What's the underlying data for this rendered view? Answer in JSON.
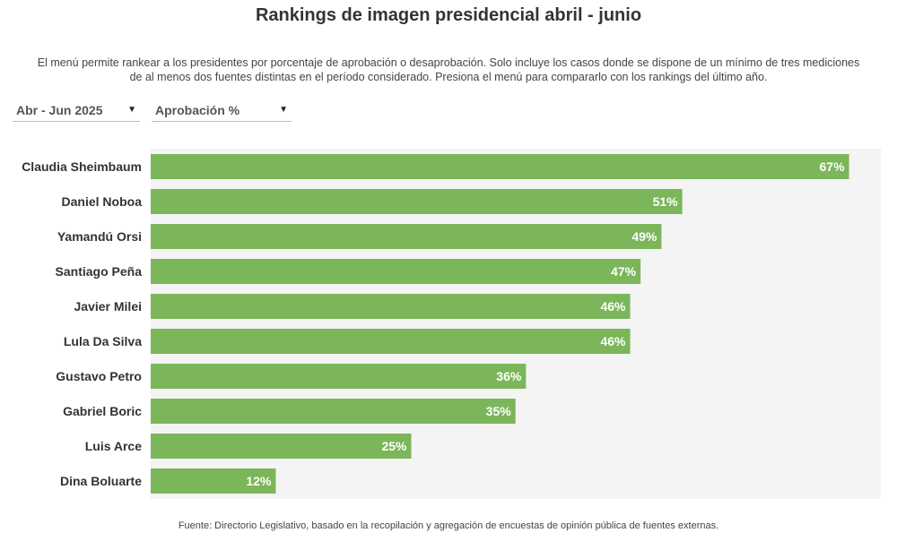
{
  "header": {
    "title": "Rankings de imagen presidencial abril - junio",
    "subtitle": "El menú permite rankear a los presidentes por porcentaje de aprobación o desaprobación. Solo incluye los casos donde se dispone de un mínimo de tres mediciones de al menos dos fuentes distintas en el período considerado. Presiona el menú para compararlo con los rankings del último año."
  },
  "controls": {
    "period": {
      "selected": "Abr - Jun 2025",
      "icon": "caret-down-icon"
    },
    "metric": {
      "selected": "Aprobación %",
      "icon": "caret-down-icon"
    }
  },
  "footer": {
    "source": "Fuente: Directorio Legislativo, basado en la recopilación y agregación de encuestas de opinión pública de fuentes externas."
  },
  "colors": {
    "bar": "#7cb65a",
    "background": "#f4f4f4",
    "label": "#333333",
    "value_label": "#ffffff"
  },
  "chart_data": {
    "type": "bar",
    "orientation": "horizontal",
    "categories": [
      "Claudia Sheimbaum",
      "Daniel Noboa",
      "Yamandú Orsi",
      "Santiago Peña",
      "Javier Milei",
      "Lula Da Silva",
      "Gustavo Petro",
      "Gabriel Boric",
      "Luis Arce",
      "Dina Boluarte"
    ],
    "values": [
      67,
      51,
      49,
      47,
      46,
      46,
      36,
      35,
      25,
      12
    ],
    "value_labels": [
      "67%",
      "51%",
      "49%",
      "47%",
      "46%",
      "46%",
      "36%",
      "35%",
      "25%",
      "12%"
    ],
    "xlim": [
      0,
      70
    ],
    "grid": false,
    "legend": "none"
  }
}
